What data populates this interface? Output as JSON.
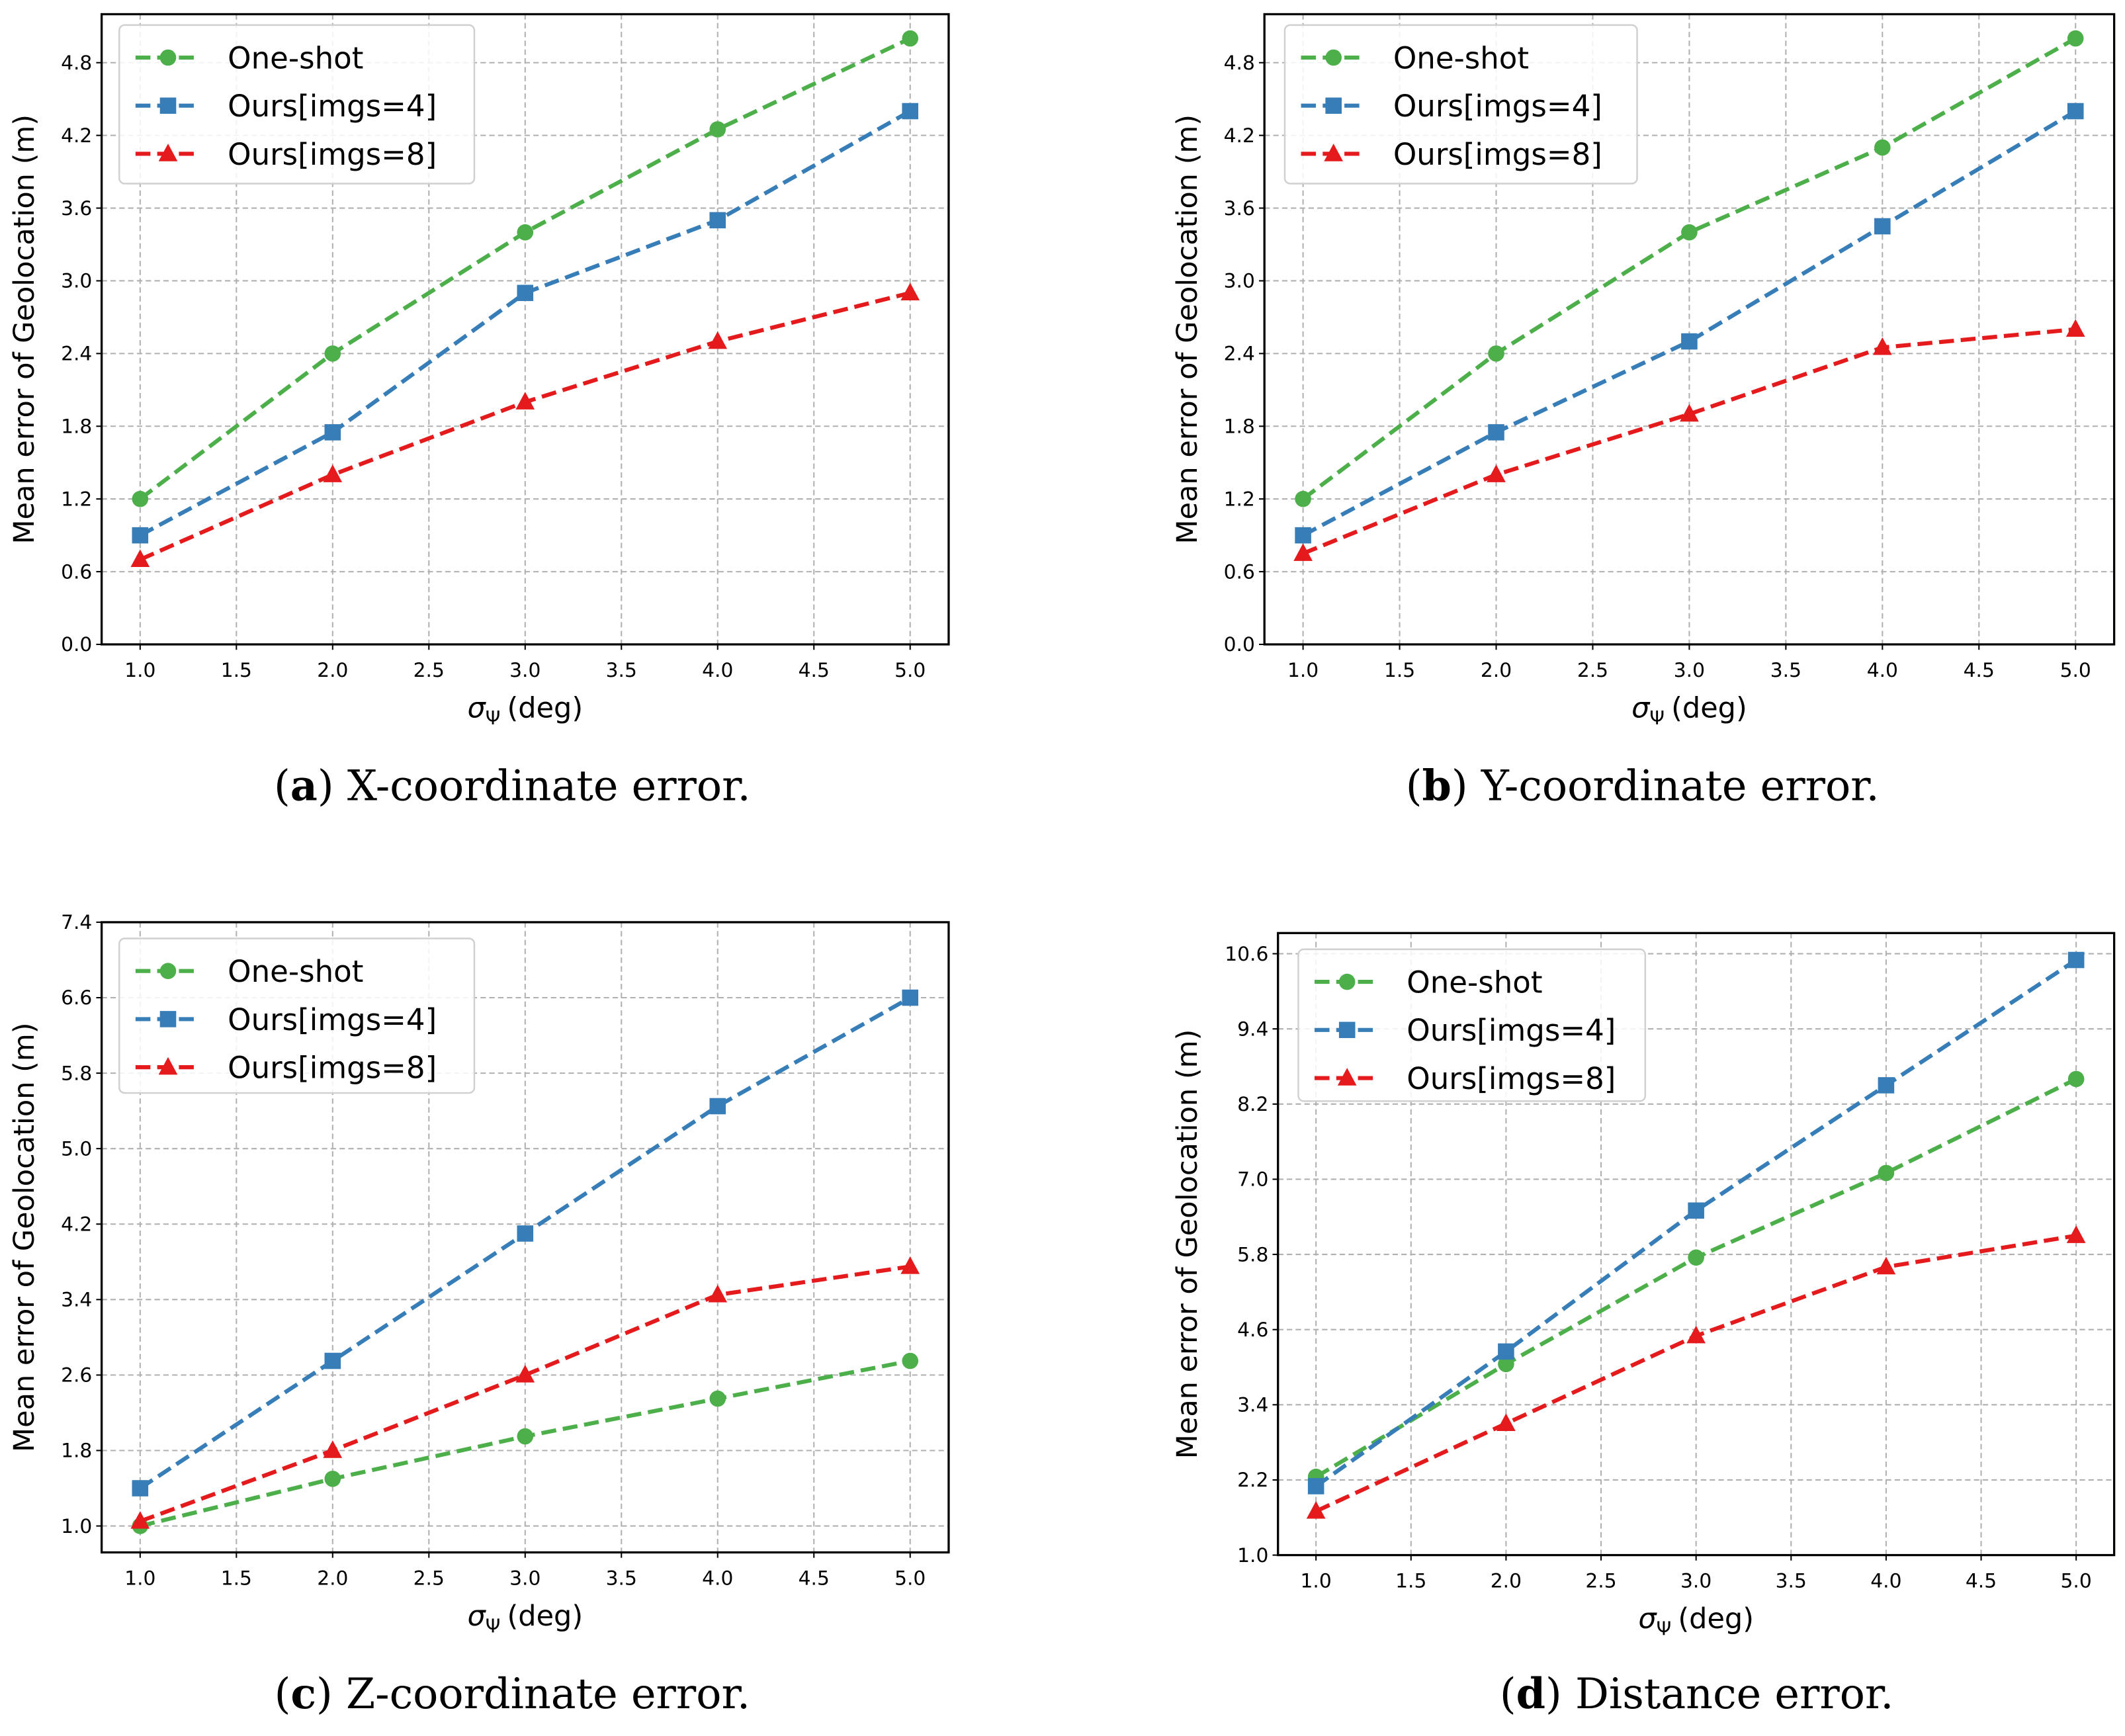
{
  "colors": {
    "One-shot": "#4daf4a",
    "Ours[imgs=4]": "#377eb8",
    "Ours[imgs=8]": "#e41a1c"
  },
  "chart_data": [
    {
      "type": "line",
      "caption_letter": "a",
      "caption_text": "X-coordinate error.",
      "xlabel_symbol": "σ",
      "xlabel_subscript": "Ψ",
      "xlabel_unit": "(deg)",
      "ylabel": "Mean error of Geolocation (m)",
      "x": [
        1.0,
        2.0,
        3.0,
        4.0,
        5.0
      ],
      "xlim": [
        0.8,
        5.2
      ],
      "ylim": [
        0.0,
        5.2
      ],
      "xticks": [
        "1.0",
        "1.5",
        "2.0",
        "2.5",
        "3.0",
        "3.5",
        "4.0",
        "4.5",
        "5.0"
      ],
      "yticks": [
        "0.0",
        "0.6",
        "1.2",
        "1.8",
        "2.4",
        "3.0",
        "3.6",
        "4.2",
        "4.8"
      ],
      "grid": true,
      "legend_position": "top-left",
      "series": [
        {
          "name": "One-shot",
          "marker": "circle",
          "values": [
            1.2,
            2.4,
            3.4,
            4.25,
            5.0
          ]
        },
        {
          "name": "Ours[imgs=4]",
          "marker": "square",
          "values": [
            0.9,
            1.75,
            2.9,
            3.5,
            4.4
          ]
        },
        {
          "name": "Ours[imgs=8]",
          "marker": "triangle",
          "values": [
            0.7,
            1.4,
            2.0,
            2.5,
            2.9
          ]
        }
      ]
    },
    {
      "type": "line",
      "caption_letter": "b",
      "caption_text": "Y-coordinate error.",
      "xlabel_symbol": "σ",
      "xlabel_subscript": "Ψ",
      "xlabel_unit": "(deg)",
      "ylabel": "Mean error of Geolocation (m)",
      "x": [
        1.0,
        2.0,
        3.0,
        4.0,
        5.0
      ],
      "xlim": [
        0.8,
        5.2
      ],
      "ylim": [
        0.0,
        5.2
      ],
      "xticks": [
        "1.0",
        "1.5",
        "2.0",
        "2.5",
        "3.0",
        "3.5",
        "4.0",
        "4.5",
        "5.0"
      ],
      "yticks": [
        "0.0",
        "0.6",
        "1.2",
        "1.8",
        "2.4",
        "3.0",
        "3.6",
        "4.2",
        "4.8"
      ],
      "grid": true,
      "legend_position": "top-left",
      "series": [
        {
          "name": "One-shot",
          "marker": "circle",
          "values": [
            1.2,
            2.4,
            3.4,
            4.1,
            5.0
          ]
        },
        {
          "name": "Ours[imgs=4]",
          "marker": "square",
          "values": [
            0.9,
            1.75,
            2.5,
            3.45,
            4.4
          ]
        },
        {
          "name": "Ours[imgs=8]",
          "marker": "triangle",
          "values": [
            0.75,
            1.4,
            1.9,
            2.45,
            2.6
          ]
        }
      ]
    },
    {
      "type": "line",
      "caption_letter": "c",
      "caption_text": "Z-coordinate error.",
      "xlabel_symbol": "σ",
      "xlabel_subscript": "Ψ",
      "xlabel_unit": "(deg)",
      "ylabel": "Mean error of Geolocation (m)",
      "x": [
        1.0,
        2.0,
        3.0,
        4.0,
        5.0
      ],
      "xlim": [
        0.8,
        5.2
      ],
      "ylim": [
        0.72,
        7.4
      ],
      "xticks": [
        "1.0",
        "1.5",
        "2.0",
        "2.5",
        "3.0",
        "3.5",
        "4.0",
        "4.5",
        "5.0"
      ],
      "yticks": [
        "1.0",
        "1.8",
        "2.6",
        "3.4",
        "4.2",
        "5.0",
        "5.8",
        "6.6",
        "7.4"
      ],
      "grid": true,
      "legend_position": "top-left",
      "series": [
        {
          "name": "One-shot",
          "marker": "circle",
          "values": [
            1.0,
            1.5,
            1.95,
            2.35,
            2.75
          ]
        },
        {
          "name": "Ours[imgs=4]",
          "marker": "square",
          "values": [
            1.4,
            2.75,
            4.1,
            5.45,
            6.6
          ]
        },
        {
          "name": "Ours[imgs=8]",
          "marker": "triangle",
          "values": [
            1.05,
            1.8,
            2.6,
            3.45,
            3.75
          ]
        }
      ]
    },
    {
      "type": "line",
      "caption_letter": "d",
      "caption_text": "Distance error.",
      "xlabel_symbol": "σ",
      "xlabel_subscript": "Ψ",
      "xlabel_unit": "(deg)",
      "ylabel": "Mean error of Geolocation (m)",
      "x": [
        1.0,
        2.0,
        3.0,
        4.0,
        5.0
      ],
      "xlim": [
        0.8,
        5.2
      ],
      "ylim": [
        1.0,
        10.93
      ],
      "xticks": [
        "1.0",
        "1.5",
        "2.0",
        "2.5",
        "3.0",
        "3.5",
        "4.0",
        "4.5",
        "5.0"
      ],
      "yticks": [
        "1.0",
        "2.2",
        "3.4",
        "4.6",
        "5.8",
        "7.0",
        "8.2",
        "9.4",
        "10.6"
      ],
      "grid": true,
      "legend_position": "top-left",
      "series": [
        {
          "name": "One-shot",
          "marker": "circle",
          "values": [
            2.25,
            4.05,
            5.75,
            7.1,
            8.6
          ]
        },
        {
          "name": "Ours[imgs=4]",
          "marker": "square",
          "values": [
            2.1,
            4.25,
            6.5,
            8.5,
            10.5
          ]
        },
        {
          "name": "Ours[imgs=8]",
          "marker": "triangle",
          "values": [
            1.7,
            3.1,
            4.5,
            5.6,
            6.1
          ]
        }
      ]
    }
  ]
}
